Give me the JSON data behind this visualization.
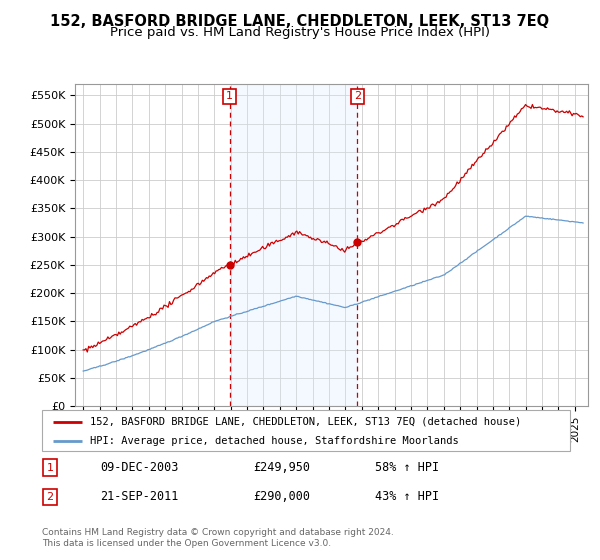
{
  "title": "152, BASFORD BRIDGE LANE, CHEDDLETON, LEEK, ST13 7EQ",
  "subtitle": "Price paid vs. HM Land Registry's House Price Index (HPI)",
  "title_fontsize": 10.5,
  "subtitle_fontsize": 9.5,
  "ylabel_ticks": [
    "£0",
    "£50K",
    "£100K",
    "£150K",
    "£200K",
    "£250K",
    "£300K",
    "£350K",
    "£400K",
    "£450K",
    "£500K",
    "£550K"
  ],
  "ytick_vals": [
    0,
    50000,
    100000,
    150000,
    200000,
    250000,
    300000,
    350000,
    400000,
    450000,
    500000,
    550000
  ],
  "ylim": [
    0,
    570000
  ],
  "sale1_date_label": "09-DEC-2003",
  "sale1_price": 249950,
  "sale1_price_str": "£249,950",
  "sale1_hpi_pct": "58% ↑ HPI",
  "sale1_x": 2003.94,
  "sale1_y": 249950,
  "sale2_date_label": "21-SEP-2011",
  "sale2_price": 290000,
  "sale2_price_str": "£290,000",
  "sale2_hpi_pct": "43% ↑ HPI",
  "sale2_x": 2011.72,
  "sale2_y": 290000,
  "legend1": "152, BASFORD BRIDGE LANE, CHEDDLETON, LEEK, ST13 7EQ (detached house)",
  "legend2": "HPI: Average price, detached house, Staffordshire Moorlands",
  "footer_line1": "Contains HM Land Registry data © Crown copyright and database right 2024.",
  "footer_line2": "This data is licensed under the Open Government Licence v3.0.",
  "red_color": "#cc0000",
  "blue_color": "#6699cc",
  "grid_color": "#cccccc",
  "shade_color": "#ddeeff",
  "xlim_left": 1994.5,
  "xlim_right": 2025.8,
  "xtick_years": [
    1995,
    1996,
    1997,
    1998,
    1999,
    2000,
    2001,
    2002,
    2003,
    2004,
    2005,
    2006,
    2007,
    2008,
    2009,
    2010,
    2011,
    2012,
    2013,
    2014,
    2015,
    2016,
    2017,
    2018,
    2019,
    2020,
    2021,
    2022,
    2023,
    2024,
    2025
  ]
}
